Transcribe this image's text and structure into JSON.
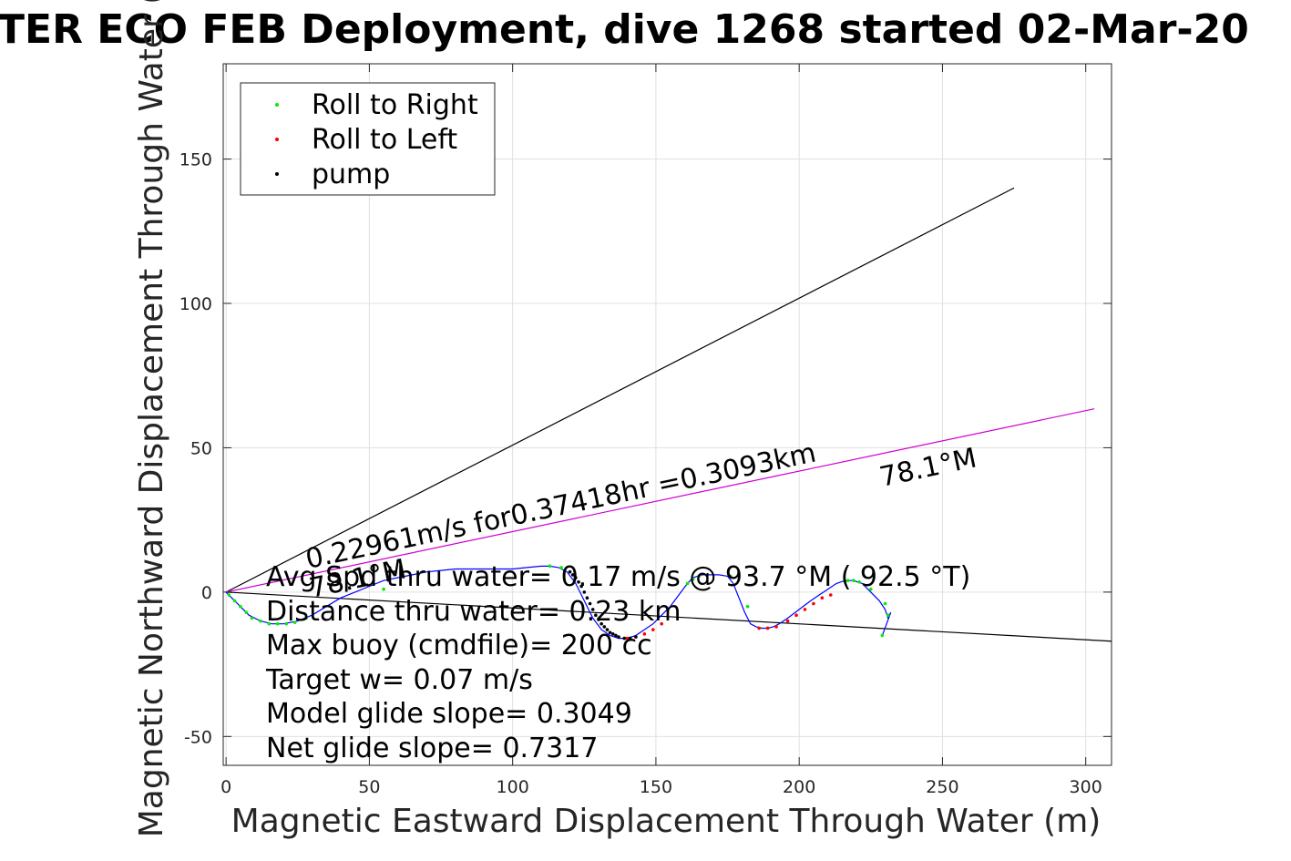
{
  "chart_data": {
    "type": "scatter",
    "title": "TER ECO FEB Deployment, dive 1268 started 02-Mar-20",
    "xlabel": "Magnetic Eastward Displacement Through Water (m)",
    "ylabel": "Magnetic Northward Displacement Through Water (",
    "xlim": [
      -1,
      309
    ],
    "ylim": [
      -60,
      183
    ],
    "xticks": [
      0,
      50,
      100,
      150,
      200,
      250,
      300
    ],
    "yticks": [
      -50,
      0,
      50,
      100,
      150
    ],
    "grid": true,
    "legend_position": "top-left",
    "legend": [
      {
        "label": "Roll to Right",
        "color": "#00ee00"
      },
      {
        "label": "Roll to Left",
        "color": "#ff0000"
      },
      {
        "label": "pump",
        "color": "#000000"
      }
    ],
    "track": {
      "name": "track",
      "color": "#0000ff",
      "x": [
        0,
        4,
        8,
        12,
        16,
        20,
        25,
        30,
        35,
        40,
        45,
        50,
        55,
        60,
        65,
        70,
        75,
        80,
        85,
        90,
        95,
        100,
        105,
        110,
        113,
        116,
        119,
        122,
        125,
        128,
        131,
        134,
        137,
        140,
        143,
        146,
        149,
        152,
        155,
        158,
        161,
        163,
        166,
        169,
        172,
        175,
        177,
        179,
        181,
        183,
        185,
        187,
        189,
        191,
        193,
        196,
        200,
        204,
        207,
        210,
        213,
        216,
        219,
        222,
        225,
        228,
        230,
        231,
        232,
        229
      ],
      "y": [
        0,
        -4,
        -8,
        -10,
        -11,
        -11,
        -10,
        -8,
        -5,
        -2,
        0,
        2,
        4,
        5,
        6,
        7,
        7.5,
        8,
        8,
        8,
        8,
        8,
        8.5,
        9,
        9,
        8.5,
        7,
        3,
        -3,
        -9,
        -13,
        -15,
        -16,
        -16,
        -15,
        -13,
        -11,
        -8,
        -5,
        -1,
        3,
        5,
        6,
        6,
        6,
        5.5,
        3,
        -2,
        -7,
        -11,
        -12,
        -12.5,
        -12.5,
        -12,
        -11,
        -9,
        -6,
        -3,
        -1,
        1,
        3,
        4,
        4,
        3,
        0,
        -3,
        -6,
        -9,
        -7,
        -15
      ]
    },
    "series": [
      {
        "name": "Roll to Right",
        "color": "#00ee00",
        "x": [
          1,
          3,
          5,
          7,
          9,
          12,
          15,
          18,
          21,
          24,
          28,
          55,
          113,
          117,
          161,
          163,
          165,
          176,
          182,
          217,
          219,
          221,
          225,
          230,
          231,
          229
        ],
        "y": [
          -1,
          -3,
          -5,
          -7,
          -9,
          -10,
          -11,
          -11,
          -11,
          -10.5,
          -9,
          1,
          9,
          8.5,
          3,
          4.5,
          5.5,
          5.5,
          -5,
          4,
          4,
          3.5,
          1,
          -4,
          -8,
          -15
        ]
      },
      {
        "name": "Roll to Left",
        "color": "#ff0000",
        "x": [
          140,
          143,
          146,
          149,
          152,
          186,
          189,
          192,
          196,
          199,
          202,
          205,
          208,
          211
        ],
        "y": [
          -16,
          -15.5,
          -14.5,
          -13,
          -11,
          -12.5,
          -12.5,
          -12,
          -10,
          -8,
          -6,
          -4,
          -2,
          -1
        ]
      },
      {
        "name": "pump",
        "color": "#000000",
        "x": [
          120,
          121,
          122,
          123,
          124,
          125,
          126,
          127,
          128,
          129,
          130,
          131,
          132,
          133,
          134,
          135,
          136,
          137,
          139,
          141,
          143
        ],
        "y": [
          7,
          6,
          5,
          3.5,
          2,
          0,
          -2,
          -4,
          -6,
          -8,
          -9.5,
          -11,
          -12,
          -13,
          -14,
          -14.5,
          -15,
          -15.5,
          -16,
          -16,
          -15.5
        ]
      }
    ],
    "lines": [
      {
        "name": "black-line-upper",
        "color": "#000000",
        "x": [
          0,
          275
        ],
        "y": [
          0,
          140
        ]
      },
      {
        "name": "black-line-lower",
        "color": "#000000",
        "x": [
          0,
          309
        ],
        "y": [
          0,
          -17
        ]
      },
      {
        "name": "magenta-line",
        "color": "#d000d0",
        "x": [
          0,
          303
        ],
        "y": [
          0,
          63.5
        ]
      }
    ],
    "annotations": {
      "speed_text": "0.22961m/s for0.37418hr =0.3093km",
      "heading_far": "78.1°M",
      "heading_near": "78.1°M",
      "stats": [
        "Avg Spd thru water=  0.17 m/s @  93.7 °M ( 92.5 °T)",
        "Distance thru water=  0.23 km",
        "Max buoy (cmdfile)= 200 cc",
        "Target w= 0.07 m/s",
        "Model glide slope= 0.3049",
        "Net glide slope= 0.7317"
      ]
    }
  }
}
